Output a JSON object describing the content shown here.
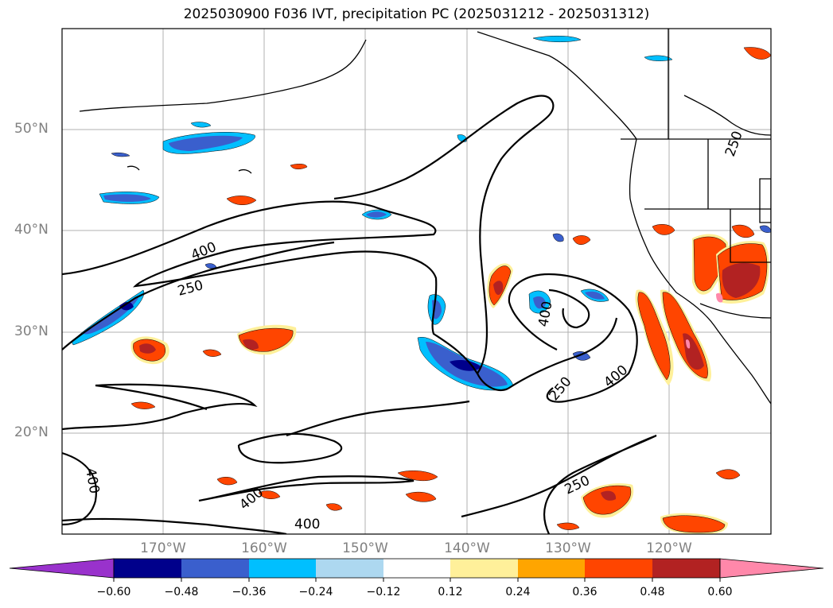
{
  "title": "2025030900 F036 IVT, precipitation PC (2025031212 - 2025031312)",
  "lat_labels": [
    "50°N",
    "40°N",
    "30°N",
    "20°N"
  ],
  "lon_labels": [
    "170°W",
    "160°W",
    "150°W",
    "140°W",
    "130°W",
    "120°W"
  ],
  "contour_labels": [
    "400",
    "250",
    "400",
    "250",
    "400",
    "400",
    "250",
    "400",
    "400",
    "250",
    "250"
  ],
  "colorbar": {
    "ticks": [
      "−0.60",
      "−0.48",
      "−0.36",
      "−0.24",
      "−0.12",
      "0.12",
      "0.24",
      "0.36",
      "0.48",
      "0.60"
    ],
    "colors": [
      "#9932cc",
      "#00008b",
      "#3a5fcd",
      "#00bfff",
      "#add8f0",
      "#ffffff",
      "#fff09a",
      "#ffa500",
      "#ff4500",
      "#b22222",
      "#ff88aa"
    ]
  },
  "colors": {
    "gridline": "#b0b0b0",
    "coastline": "#000000",
    "contour": "#000000",
    "axis_label": "#808080"
  }
}
